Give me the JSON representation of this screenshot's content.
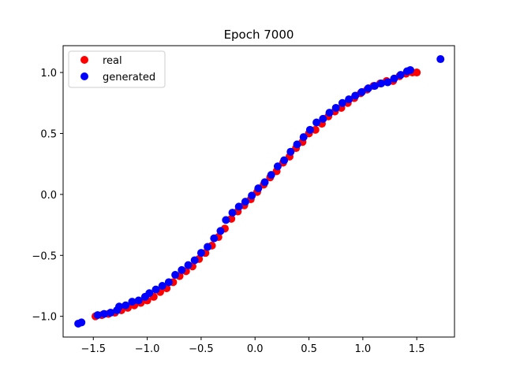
{
  "chart_data": {
    "type": "scatter",
    "title": "Epoch 7000",
    "xlabel": "",
    "ylabel": "",
    "xlim": [
      -1.78,
      1.85
    ],
    "ylim": [
      -1.17,
      1.22
    ],
    "x_ticks": [
      -1.5,
      -1.0,
      -0.5,
      0.0,
      0.5,
      1.0,
      1.5
    ],
    "x_tick_labels": [
      "−1.5",
      "−1.0",
      "−0.5",
      "0.0",
      "0.5",
      "1.0",
      "1.5"
    ],
    "y_ticks": [
      -1.0,
      -0.5,
      0.0,
      0.5,
      1.0
    ],
    "y_tick_labels": [
      "−1.0",
      "−0.5",
      "0.0",
      "0.5",
      "1.0"
    ],
    "grid": false,
    "legend_position": "top-left",
    "series": [
      {
        "name": "real",
        "color": "#ff0000",
        "points": [
          [
            -1.48,
            -1.0
          ],
          [
            -1.42,
            -0.99
          ],
          [
            -1.36,
            -0.98
          ],
          [
            -1.3,
            -0.97
          ],
          [
            -1.24,
            -0.95
          ],
          [
            -1.18,
            -0.93
          ],
          [
            -1.12,
            -0.91
          ],
          [
            -1.06,
            -0.89
          ],
          [
            -1.0,
            -0.87
          ],
          [
            -0.94,
            -0.84
          ],
          [
            -0.88,
            -0.8
          ],
          [
            -0.82,
            -0.77
          ],
          [
            -0.76,
            -0.72
          ],
          [
            -0.7,
            -0.67
          ],
          [
            -0.64,
            -0.63
          ],
          [
            -0.58,
            -0.59
          ],
          [
            -0.52,
            -0.53
          ],
          [
            -0.46,
            -0.48
          ],
          [
            -0.4,
            -0.42
          ],
          [
            -0.34,
            -0.35
          ],
          [
            -0.28,
            -0.28
          ],
          [
            -0.22,
            -0.2
          ],
          [
            -0.16,
            -0.14
          ],
          [
            -0.1,
            -0.09
          ],
          [
            -0.04,
            -0.04
          ],
          [
            0.02,
            0.02
          ],
          [
            0.08,
            0.08
          ],
          [
            0.14,
            0.14
          ],
          [
            0.2,
            0.19
          ],
          [
            0.26,
            0.26
          ],
          [
            0.32,
            0.31
          ],
          [
            0.38,
            0.38
          ],
          [
            0.44,
            0.43
          ],
          [
            0.5,
            0.5
          ],
          [
            0.56,
            0.53
          ],
          [
            0.62,
            0.58
          ],
          [
            0.68,
            0.64
          ],
          [
            0.74,
            0.68
          ],
          [
            0.8,
            0.71
          ],
          [
            0.86,
            0.75
          ],
          [
            0.92,
            0.79
          ],
          [
            0.98,
            0.83
          ],
          [
            1.04,
            0.86
          ],
          [
            1.1,
            0.89
          ],
          [
            1.16,
            0.91
          ],
          [
            1.22,
            0.93
          ],
          [
            1.28,
            0.93
          ],
          [
            1.34,
            0.97
          ],
          [
            1.4,
            0.99
          ],
          [
            1.46,
            1.0
          ],
          [
            1.5,
            1.0
          ]
        ]
      },
      {
        "name": "generated",
        "color": "#0000ff",
        "points": [
          [
            -1.64,
            -1.06
          ],
          [
            -1.61,
            -1.05
          ],
          [
            -1.46,
            -0.99
          ],
          [
            -1.4,
            -0.98
          ],
          [
            -1.34,
            -0.97
          ],
          [
            -1.28,
            -0.95
          ],
          [
            -1.26,
            -0.92
          ],
          [
            -1.2,
            -0.91
          ],
          [
            -1.14,
            -0.88
          ],
          [
            -1.08,
            -0.87
          ],
          [
            -1.02,
            -0.84
          ],
          [
            -0.98,
            -0.81
          ],
          [
            -0.92,
            -0.78
          ],
          [
            -0.86,
            -0.75
          ],
          [
            -0.8,
            -0.72
          ],
          [
            -0.74,
            -0.66
          ],
          [
            -0.68,
            -0.62
          ],
          [
            -0.62,
            -0.58
          ],
          [
            -0.56,
            -0.54
          ],
          [
            -0.5,
            -0.48
          ],
          [
            -0.44,
            -0.43
          ],
          [
            -0.38,
            -0.36
          ],
          [
            -0.32,
            -0.3
          ],
          [
            -0.27,
            -0.21
          ],
          [
            -0.21,
            -0.15
          ],
          [
            -0.15,
            -0.1
          ],
          [
            -0.09,
            -0.06
          ],
          [
            -0.03,
            -0.01
          ],
          [
            0.03,
            0.05
          ],
          [
            0.09,
            0.1
          ],
          [
            0.15,
            0.16
          ],
          [
            0.21,
            0.23
          ],
          [
            0.27,
            0.28
          ],
          [
            0.33,
            0.35
          ],
          [
            0.39,
            0.41
          ],
          [
            0.45,
            0.47
          ],
          [
            0.51,
            0.53
          ],
          [
            0.57,
            0.59
          ],
          [
            0.63,
            0.62
          ],
          [
            0.69,
            0.67
          ],
          [
            0.75,
            0.71
          ],
          [
            0.81,
            0.75
          ],
          [
            0.87,
            0.78
          ],
          [
            0.93,
            0.81
          ],
          [
            0.99,
            0.84
          ],
          [
            1.05,
            0.87
          ],
          [
            1.11,
            0.89
          ],
          [
            1.17,
            0.91
          ],
          [
            1.23,
            0.92
          ],
          [
            1.29,
            0.95
          ],
          [
            1.35,
            0.98
          ],
          [
            1.41,
            1.01
          ],
          [
            1.44,
            1.02
          ],
          [
            1.72,
            1.11
          ]
        ]
      }
    ]
  }
}
